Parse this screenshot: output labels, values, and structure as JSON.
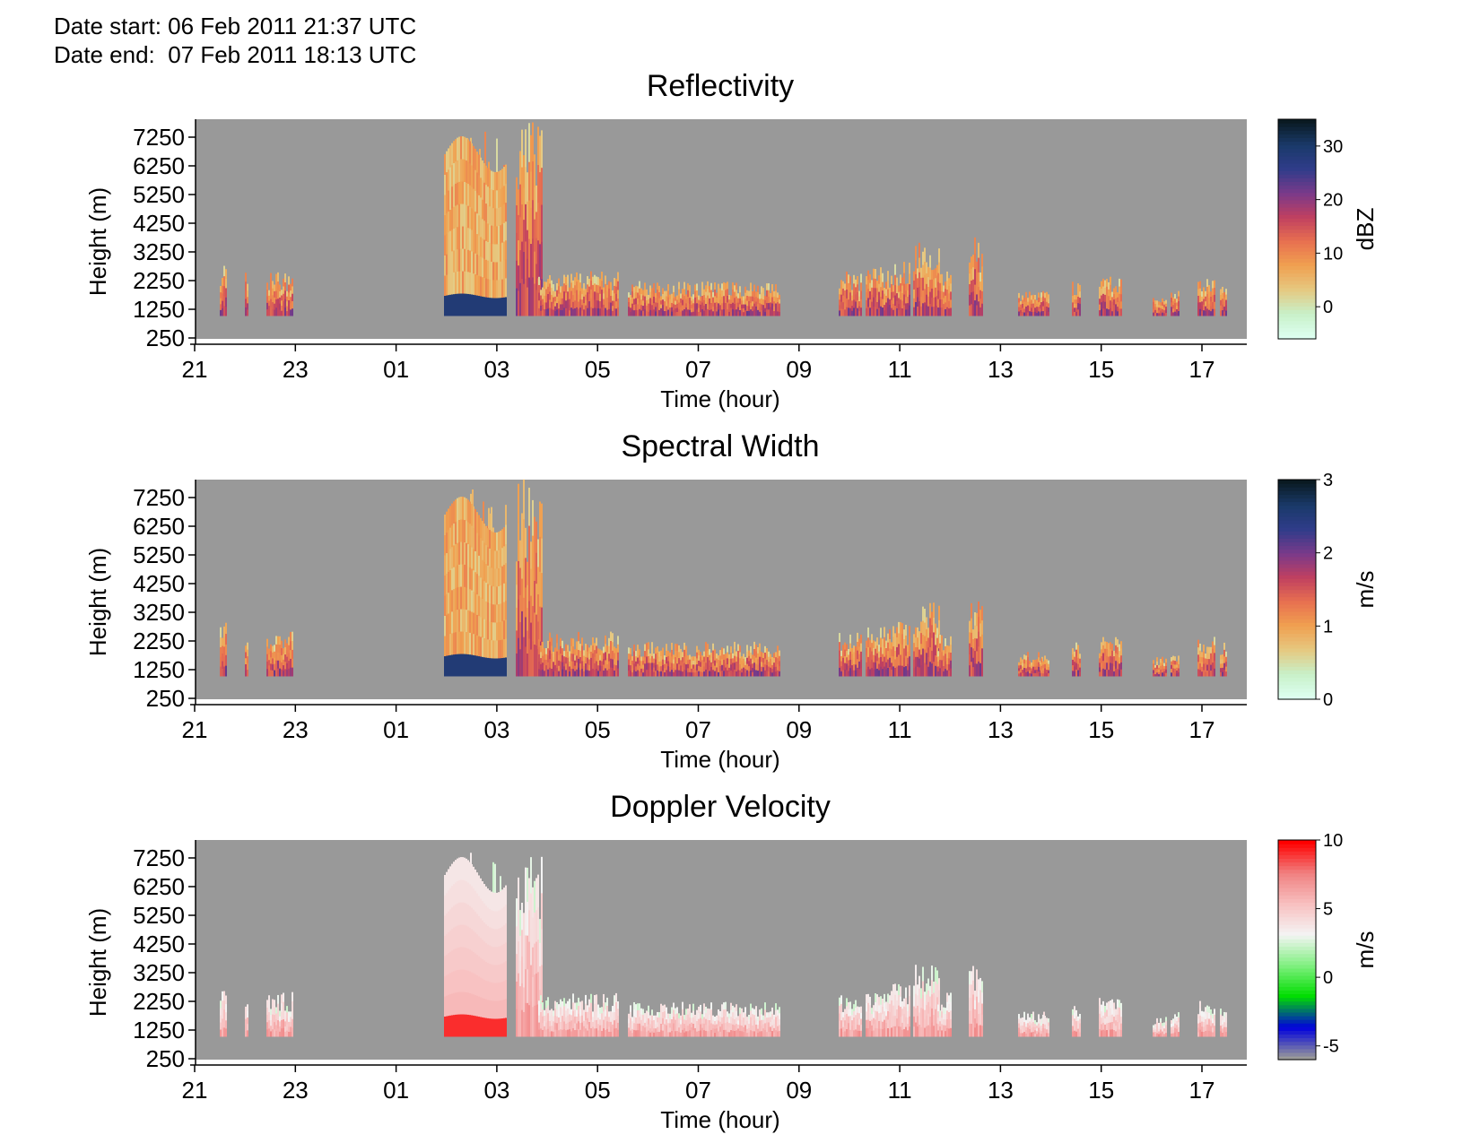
{
  "header": {
    "date_start": "Date start: 06 Feb 2011 21:37 UTC",
    "date_end": "Date end:  07 Feb 2011 18:13 UTC"
  },
  "chart_data": [
    {
      "type": "heatmap",
      "title": "Reflectivity",
      "xlabel": "Time (hour)",
      "ylabel": "Height (m)",
      "x_tick_labels": [
        "21",
        "23",
        "01",
        "03",
        "05",
        "07",
        "09",
        "11",
        "13",
        "15",
        "17"
      ],
      "y_tick_labels": [
        "7250",
        "6250",
        "5250",
        "4250",
        "3250",
        "2250",
        "1250",
        "250"
      ],
      "colorbar": {
        "label": "dBZ",
        "tick_labels": [
          "30",
          "20",
          "10",
          "0"
        ],
        "tick_values": [
          30,
          20,
          10,
          0
        ],
        "range": [
          -6,
          35
        ],
        "colors": [
          "#ddfff0",
          "#c8f0c8",
          "#e6c880",
          "#f0a050",
          "#e87050",
          "#c04060",
          "#7a3a8a",
          "#303c8a",
          "#1a3a6a",
          "#0a1a22"
        ]
      },
      "background": "#999999"
    },
    {
      "type": "heatmap",
      "title": "Spectral Width",
      "xlabel": "Time (hour)",
      "ylabel": "Height (m)",
      "x_tick_labels": [
        "21",
        "23",
        "01",
        "03",
        "05",
        "07",
        "09",
        "11",
        "13",
        "15",
        "17"
      ],
      "y_tick_labels": [
        "7250",
        "6250",
        "5250",
        "4250",
        "3250",
        "2250",
        "1250",
        "250"
      ],
      "colorbar": {
        "label": "m/s",
        "tick_labels": [
          "3",
          "2",
          "1",
          "0"
        ],
        "tick_values": [
          3,
          2,
          1,
          0
        ],
        "range": [
          0,
          3
        ],
        "colors": [
          "#ddfff0",
          "#c8f0c8",
          "#e6c880",
          "#f0a050",
          "#e87050",
          "#c04060",
          "#7a3a8a",
          "#303c8a",
          "#1a3a6a",
          "#0a1a22"
        ]
      },
      "background": "#999999"
    },
    {
      "type": "heatmap",
      "title": "Doppler Velocity",
      "xlabel": "Time (hour)",
      "ylabel": "Height (m)",
      "x_tick_labels": [
        "21",
        "23",
        "01",
        "03",
        "05",
        "07",
        "09",
        "11",
        "13",
        "15",
        "17"
      ],
      "y_tick_labels": [
        "7250",
        "6250",
        "5250",
        "4250",
        "3250",
        "2250",
        "1250",
        "250"
      ],
      "colorbar": {
        "label": "m/s",
        "tick_labels": [
          "10",
          "5",
          "0",
          "-5"
        ],
        "tick_values": [
          10,
          5,
          0,
          -5
        ],
        "range": [
          -6,
          10
        ],
        "colors": [
          "#999999",
          "#0000dd",
          "#00dd00",
          "#80f080",
          "#f4f4f4",
          "#f8c0c0",
          "#f08080",
          "#ff0000"
        ]
      },
      "background": "#999999"
    }
  ]
}
